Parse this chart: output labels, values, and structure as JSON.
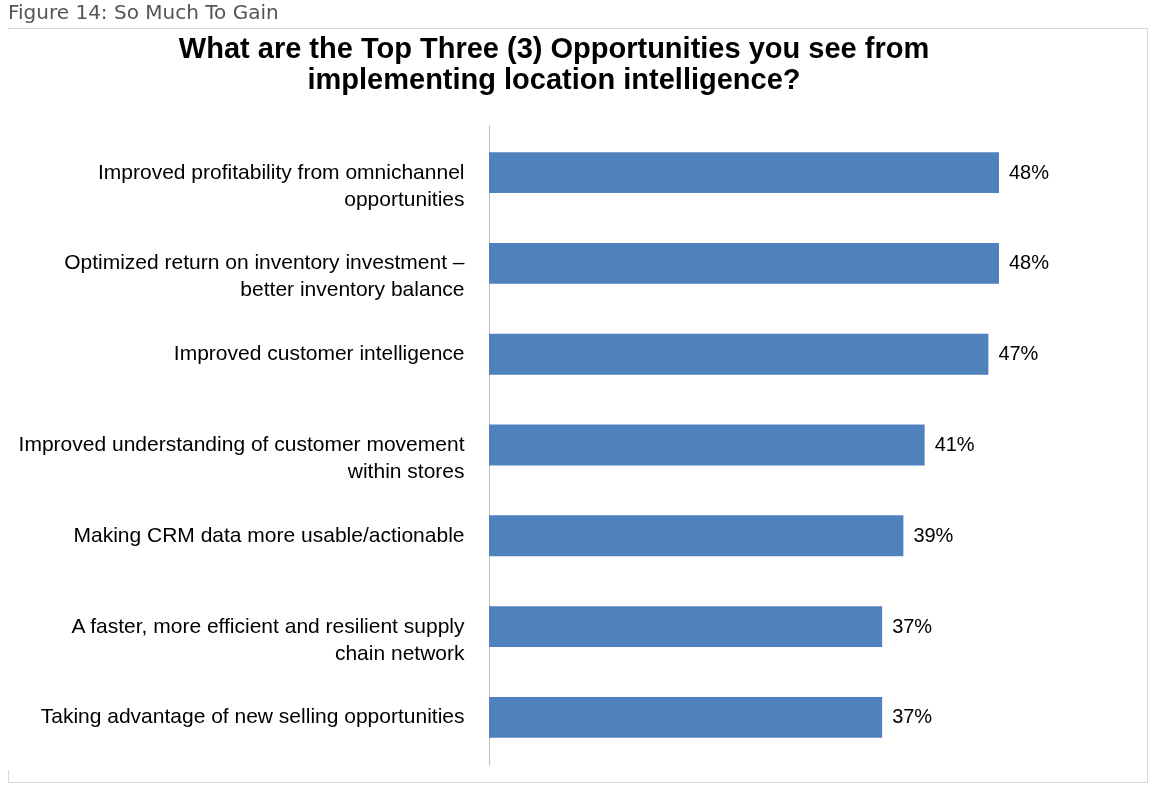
{
  "chart_data": {
    "type": "bar",
    "orientation": "horizontal",
    "title": "What are the Top Three (3) Opportunities you see from implementing location intelligence?",
    "annotations": [
      "Figure 14: So Much To Gain"
    ],
    "categories": [
      "Improved profitability from omnichannel opportunities",
      "Optimized return on inventory investment – better inventory balance",
      "Improved customer intelligence",
      "Improved understanding of customer movement within stores",
      "Making CRM data more usable/actionable",
      "A faster, more efficient and resilient supply chain network",
      "Taking advantage of new selling opportunities"
    ],
    "values": [
      48,
      48,
      47,
      41,
      39,
      37,
      37
    ],
    "value_labels": [
      "48%",
      "48%",
      "47%",
      "41%",
      "39%",
      "37%",
      "37%"
    ],
    "color": "#4f81bd"
  }
}
